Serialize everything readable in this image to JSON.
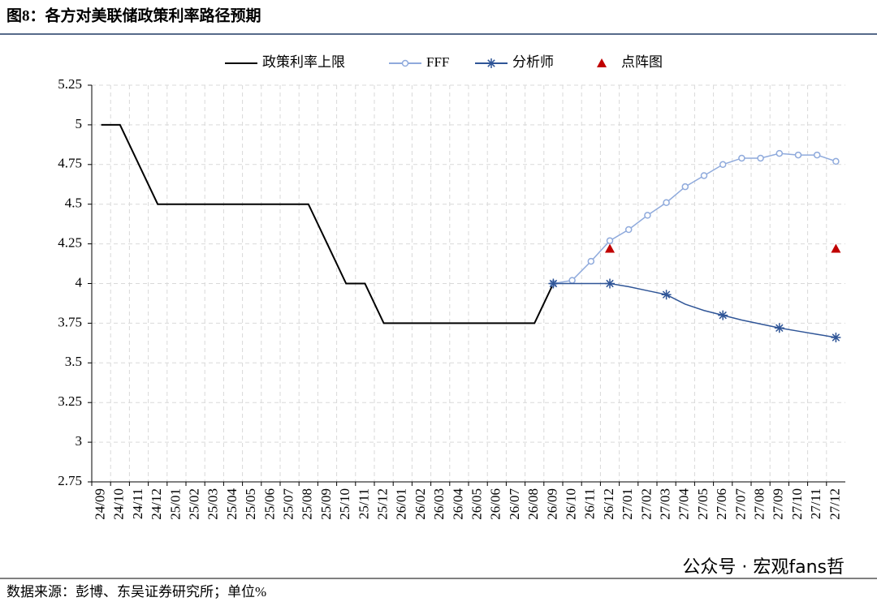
{
  "chart_data": {
    "type": "line",
    "title": "图8：各方对美联储政策利率路径预期",
    "source": "数据来源：彭博、东吴证券研究所；单位%",
    "watermark": "公众号 · 宏观fans哲",
    "categories": [
      "24/09",
      "24/10",
      "24/11",
      "24/12",
      "25/01",
      "25/02",
      "25/03",
      "25/04",
      "25/05",
      "25/06",
      "25/07",
      "25/08",
      "25/09",
      "25/10",
      "25/11",
      "25/12",
      "26/01",
      "26/02",
      "26/03",
      "26/04",
      "26/05",
      "26/06",
      "26/07",
      "26/08",
      "26/09",
      "26/10",
      "26/11",
      "26/12",
      "27/01",
      "27/02",
      "27/03",
      "27/04",
      "27/05",
      "27/06",
      "27/07",
      "27/08",
      "27/09",
      "27/10",
      "27/11",
      "27/12"
    ],
    "series": [
      {
        "name": "政策利率上限",
        "color": "#000000",
        "marker": "none",
        "values": [
          5,
          5,
          4.75,
          4.5,
          4.5,
          4.5,
          4.5,
          4.5,
          4.5,
          4.5,
          4.5,
          4.5,
          4.25,
          4,
          4,
          3.75,
          3.75,
          3.75,
          3.75,
          3.75,
          3.75,
          3.75,
          3.75,
          3.75,
          4,
          null,
          null,
          null,
          null,
          null,
          null,
          null,
          null,
          null,
          null,
          null,
          null,
          null,
          null,
          null
        ]
      },
      {
        "name": "FFF",
        "color": "#8faadc",
        "marker": "circle",
        "values": [
          null,
          null,
          null,
          null,
          null,
          null,
          null,
          null,
          null,
          null,
          null,
          null,
          null,
          null,
          null,
          null,
          null,
          null,
          null,
          null,
          null,
          null,
          null,
          null,
          4,
          4.02,
          4.14,
          4.27,
          4.34,
          4.43,
          4.51,
          4.61,
          4.68,
          4.75,
          4.79,
          4.79,
          4.82,
          4.81,
          4.81,
          4.77
        ]
      },
      {
        "name": "分析师",
        "color": "#2f5597",
        "marker": "star",
        "values": [
          null,
          null,
          null,
          null,
          null,
          null,
          null,
          null,
          null,
          null,
          null,
          null,
          null,
          null,
          null,
          null,
          null,
          null,
          null,
          null,
          null,
          null,
          null,
          null,
          4,
          4,
          4,
          4,
          3.98,
          3.955,
          3.93,
          3.87,
          3.83,
          3.8,
          3.77,
          3.745,
          3.72,
          3.7,
          3.68,
          3.66
        ]
      },
      {
        "name": "点阵图",
        "color": "#c00000",
        "marker": "triangle",
        "line": false,
        "values": [
          null,
          null,
          null,
          null,
          null,
          null,
          null,
          null,
          null,
          null,
          null,
          null,
          null,
          null,
          null,
          null,
          null,
          null,
          null,
          null,
          null,
          null,
          null,
          null,
          null,
          null,
          null,
          4.22,
          null,
          null,
          null,
          null,
          null,
          null,
          null,
          null,
          null,
          null,
          null,
          4.22
        ]
      }
    ],
    "ylim": [
      2.75,
      5.25
    ],
    "yticks": [
      2.75,
      3,
      3.25,
      3.5,
      3.75,
      4,
      4.25,
      4.5,
      4.75,
      5,
      5.25
    ],
    "grid": true
  }
}
